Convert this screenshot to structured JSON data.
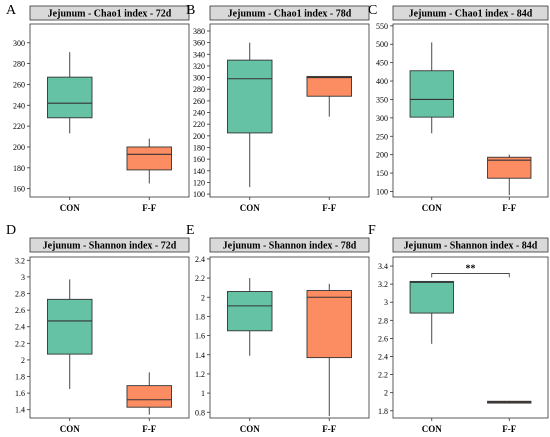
{
  "chart_data": [
    {
      "panel": "A",
      "type": "box",
      "title": "Jejunum - Chao1 index - 72d",
      "categories": [
        "CON",
        "F-F"
      ],
      "ylim": [
        152,
        318
      ],
      "yticks": [
        160,
        180,
        200,
        220,
        240,
        260,
        280,
        300
      ],
      "grid": false,
      "boxes": [
        {
          "category": "CON",
          "min": 213,
          "q1": 228,
          "median": 242,
          "q3": 267,
          "max": 291,
          "color": "#66C2A5"
        },
        {
          "category": "F-F",
          "min": 165,
          "q1": 178,
          "median": 193,
          "q3": 200,
          "max": 208,
          "color": "#FC8D62"
        }
      ],
      "annotations": []
    },
    {
      "panel": "B",
      "type": "box",
      "title": "Jejunum - Chao1 index - 78d",
      "categories": [
        "CON",
        "F-F"
      ],
      "ylim": [
        95,
        392
      ],
      "yticks": [
        100,
        120,
        140,
        160,
        180,
        200,
        220,
        240,
        260,
        280,
        300,
        320,
        340,
        360,
        380
      ],
      "grid": false,
      "boxes": [
        {
          "category": "CON",
          "min": 112,
          "q1": 205,
          "median": 298,
          "q3": 330,
          "max": 360,
          "color": "#66C2A5"
        },
        {
          "category": "F-F",
          "min": 233,
          "q1": 268,
          "median": 300,
          "q3": 302,
          "max": 302,
          "color": "#FC8D62"
        }
      ],
      "annotations": []
    },
    {
      "panel": "C",
      "type": "box",
      "title": "Jejunum - Chao1 index - 84d",
      "categories": [
        "CON",
        "F-F"
      ],
      "ylim": [
        85,
        555
      ],
      "yticks": [
        100,
        150,
        200,
        250,
        300,
        350,
        400,
        450,
        500,
        550
      ],
      "grid": false,
      "boxes": [
        {
          "category": "CON",
          "min": 258,
          "q1": 302,
          "median": 350,
          "q3": 428,
          "max": 505,
          "color": "#66C2A5"
        },
        {
          "category": "F-F",
          "min": 90,
          "q1": 136,
          "median": 185,
          "q3": 193,
          "max": 200,
          "color": "#FC8D62"
        }
      ],
      "annotations": []
    },
    {
      "panel": "D",
      "type": "box",
      "title": "Jejunum - Shannon index - 72d",
      "categories": [
        "CON",
        "F-F"
      ],
      "ylim": [
        1.3,
        3.24
      ],
      "yticks": [
        1.4,
        1.6,
        1.8,
        2,
        2.2,
        2.4,
        2.6,
        2.8,
        3,
        3.2
      ],
      "grid": false,
      "boxes": [
        {
          "category": "CON",
          "min": 1.65,
          "q1": 2.07,
          "median": 2.47,
          "q3": 2.73,
          "max": 2.97,
          "color": "#66C2A5"
        },
        {
          "category": "F-F",
          "min": 1.34,
          "q1": 1.43,
          "median": 1.52,
          "q3": 1.69,
          "max": 1.85,
          "color": "#FC8D62"
        }
      ],
      "annotations": []
    },
    {
      "panel": "E",
      "type": "box",
      "title": "Jejunum - Shannon index - 78d",
      "categories": [
        "CON",
        "F-F"
      ],
      "ylim": [
        0.74,
        2.42
      ],
      "yticks": [
        0.8,
        1,
        1.2,
        1.4,
        1.6,
        1.8,
        2,
        2.2,
        2.4
      ],
      "grid": false,
      "boxes": [
        {
          "category": "CON",
          "min": 1.39,
          "q1": 1.65,
          "median": 1.91,
          "q3": 2.06,
          "max": 2.2,
          "color": "#66C2A5"
        },
        {
          "category": "F-F",
          "min": 0.76,
          "q1": 1.37,
          "median": 2.0,
          "q3": 2.07,
          "max": 2.14,
          "color": "#FC8D62"
        }
      ],
      "annotations": []
    },
    {
      "panel": "F",
      "type": "box",
      "title": "Jejunum - Shannon index - 84d",
      "categories": [
        "CON",
        "F-F"
      ],
      "ylim": [
        1.72,
        3.5
      ],
      "yticks": [
        1.8,
        2,
        2.2,
        2.4,
        2.6,
        2.8,
        3,
        3.2,
        3.4
      ],
      "grid": false,
      "boxes": [
        {
          "category": "CON",
          "min": 2.54,
          "q1": 2.88,
          "median": 3.22,
          "q3": 3.23,
          "max": 3.23,
          "color": "#66C2A5"
        },
        {
          "category": "F-F",
          "min": 1.88,
          "q1": 1.885,
          "median": 1.895,
          "q3": 1.905,
          "max": 1.91,
          "color": "#FC8D62"
        }
      ],
      "annotations": [
        {
          "text": "**",
          "from": "CON",
          "to": "F-F"
        }
      ]
    }
  ]
}
